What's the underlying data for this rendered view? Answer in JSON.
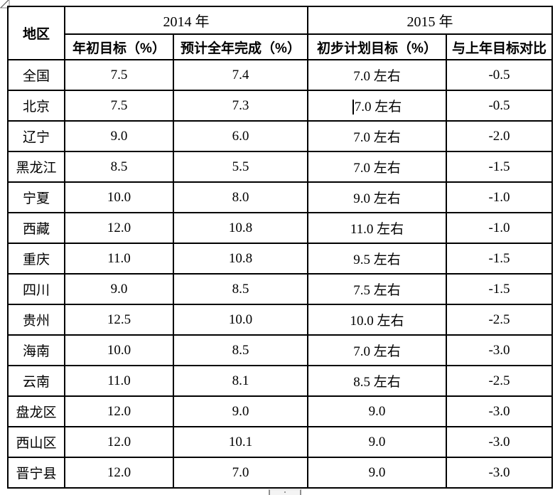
{
  "page": {
    "background": "#ffffff",
    "grid_color": "#000000"
  },
  "table": {
    "region_header": "地区",
    "groups": [
      {
        "label": "2014 年",
        "columns": [
          "年初目标（%）",
          "预计全年完成（%）"
        ]
      },
      {
        "label": "2015 年",
        "columns": [
          "初步计划目标（%）",
          "与上年目标对比"
        ]
      }
    ],
    "rows": [
      {
        "region": "全国",
        "y2014_target": "7.5",
        "y2014_expected": "7.4",
        "y2015_plan": "7.0 左右",
        "y2015_vs": "-0.5"
      },
      {
        "region": "北京",
        "y2014_target": "7.5",
        "y2014_expected": "7.3",
        "y2015_plan": "7.0 左右",
        "y2015_vs": "-0.5"
      },
      {
        "region": "辽宁",
        "y2014_target": "9.0",
        "y2014_expected": "6.0",
        "y2015_plan": "7.0 左右",
        "y2015_vs": "-2.0"
      },
      {
        "region": "黑龙江",
        "y2014_target": "8.5",
        "y2014_expected": "5.5",
        "y2015_plan": "7.0 左右",
        "y2015_vs": "-1.5"
      },
      {
        "region": "宁夏",
        "y2014_target": "10.0",
        "y2014_expected": "8.0",
        "y2015_plan": "9.0 左右",
        "y2015_vs": "-1.0"
      },
      {
        "region": "西藏",
        "y2014_target": "12.0",
        "y2014_expected": "10.8",
        "y2015_plan": "11.0 左右",
        "y2015_vs": "-1.0"
      },
      {
        "region": "重庆",
        "y2014_target": "11.0",
        "y2014_expected": "10.8",
        "y2015_plan": "9.5 左右",
        "y2015_vs": "-1.5"
      },
      {
        "region": "四川",
        "y2014_target": "9.0",
        "y2014_expected": "8.5",
        "y2015_plan": "7.5 左右",
        "y2015_vs": "-1.5"
      },
      {
        "region": "贵州",
        "y2014_target": "12.5",
        "y2014_expected": "10.0",
        "y2015_plan": "10.0 左右",
        "y2015_vs": "-2.5"
      },
      {
        "region": "海南",
        "y2014_target": "10.0",
        "y2014_expected": "8.5",
        "y2015_plan": "7.0 左右",
        "y2015_vs": "-3.0"
      },
      {
        "region": "云南",
        "y2014_target": "11.0",
        "y2014_expected": "8.1",
        "y2015_plan": "8.5 左右",
        "y2015_vs": "-2.5"
      },
      {
        "region": "盘龙区",
        "y2014_target": "12.0",
        "y2014_expected": "9.0",
        "y2015_plan": "9.0",
        "y2015_vs": "-3.0"
      },
      {
        "region": "西山区",
        "y2014_target": "12.0",
        "y2014_expected": "10.1",
        "y2015_plan": "9.0",
        "y2015_vs": "-3.0"
      },
      {
        "region": "晋宁县",
        "y2014_target": "12.0",
        "y2014_expected": "7.0",
        "y2015_plan": "9.0",
        "y2015_vs": "-3.0"
      }
    ]
  },
  "artifacts": {
    "text_cursor_region": "北京",
    "text_cursor_column": "y2015_plan"
  }
}
